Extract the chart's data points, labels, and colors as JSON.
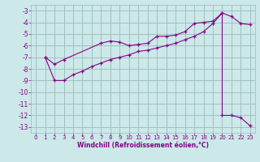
{
  "xlabel": "Windchill (Refroidissement éolien,°C)",
  "background_color": "#cce8e8",
  "line_color": "#880088",
  "grid_color": "#99bbbb",
  "upper_line": {
    "x": [
      1,
      2,
      3,
      7,
      8,
      9,
      10,
      11,
      12,
      13,
      14,
      15,
      16,
      17,
      18,
      19,
      20,
      21,
      22,
      23
    ],
    "y": [
      -7.0,
      -7.6,
      -7.2,
      -5.8,
      -5.6,
      -5.7,
      -6.0,
      -5.9,
      -5.8,
      -5.2,
      -5.2,
      -5.1,
      -4.8,
      -4.1,
      -4.0,
      -3.9,
      -3.2,
      -3.5,
      -4.1,
      -4.2
    ]
  },
  "lower_line": {
    "x": [
      1,
      2,
      3,
      4,
      5,
      6,
      7,
      8,
      9,
      10,
      11,
      12,
      13,
      14,
      15,
      16,
      17,
      18,
      19,
      20,
      20,
      21,
      22,
      23
    ],
    "y": [
      -7.0,
      -9.0,
      -9.0,
      -8.5,
      -8.2,
      -7.8,
      -7.5,
      -7.2,
      -7.0,
      -6.8,
      -6.5,
      -6.4,
      -6.2,
      -6.0,
      -5.8,
      -5.5,
      -5.2,
      -4.8,
      -4.1,
      -3.2,
      -12.0,
      -12.0,
      -12.2,
      -12.9
    ]
  },
  "xlim": [
    -0.5,
    23.5
  ],
  "ylim": [
    -13.5,
    -2.5
  ],
  "xticks": [
    0,
    1,
    2,
    3,
    4,
    5,
    6,
    7,
    8,
    9,
    10,
    11,
    12,
    13,
    14,
    15,
    16,
    17,
    18,
    19,
    20,
    21,
    22,
    23
  ],
  "yticks": [
    -13,
    -12,
    -11,
    -10,
    -9,
    -8,
    -7,
    -6,
    -5,
    -4,
    -3
  ]
}
